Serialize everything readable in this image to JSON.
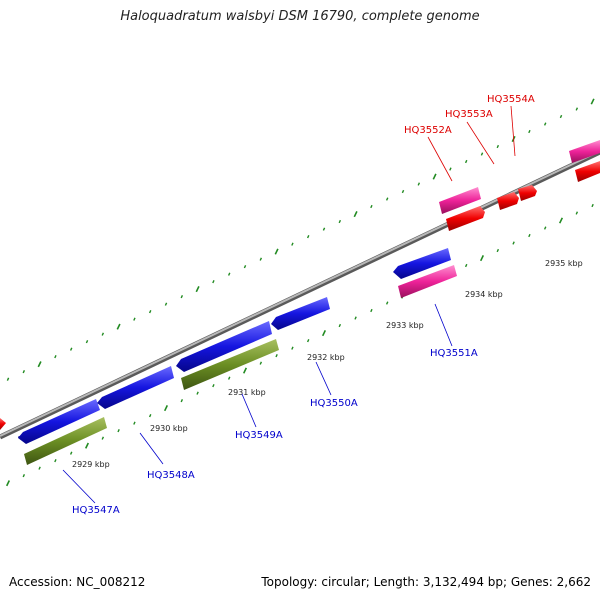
{
  "title": "Haloquadratum walsbyi DSM 16790, complete genome",
  "footer": {
    "accession": "Accession: NC_008212",
    "summary": "Topology: circular; Length: 3,132,494 bp; Genes: 2,662"
  },
  "colors": {
    "backbone": "#888888",
    "forward_gene": "#2222dd",
    "forward_cds": "#ee0000",
    "reverse_gene": "#ee2299",
    "reverse_cds": "#6b8e23",
    "tick": "#228b22",
    "label_blue": "#0000cc",
    "label_red": "#dd0000"
  },
  "ticks": [
    {
      "label": "2929 kbp",
      "kbp": 2929
    },
    {
      "label": "2930 kbp",
      "kbp": 2930
    },
    {
      "label": "2931 kbp",
      "kbp": 2931
    },
    {
      "label": "2932 kbp",
      "kbp": 2932
    },
    {
      "label": "2933 kbp",
      "kbp": 2933
    },
    {
      "label": "2934 kbp",
      "kbp": 2934
    },
    {
      "label": "2935 kbp",
      "kbp": 2935
    }
  ],
  "genes": [
    {
      "id": "HQ3547A",
      "color": "blue"
    },
    {
      "id": "HQ3548A",
      "color": "blue"
    },
    {
      "id": "HQ3549A",
      "color": "blue"
    },
    {
      "id": "HQ3550A",
      "color": "blue"
    },
    {
      "id": "HQ3551A",
      "color": "blue"
    },
    {
      "id": "HQ3552A",
      "color": "red"
    },
    {
      "id": "HQ3553A",
      "color": "red"
    },
    {
      "id": "HQ3554A",
      "color": "red"
    }
  ]
}
